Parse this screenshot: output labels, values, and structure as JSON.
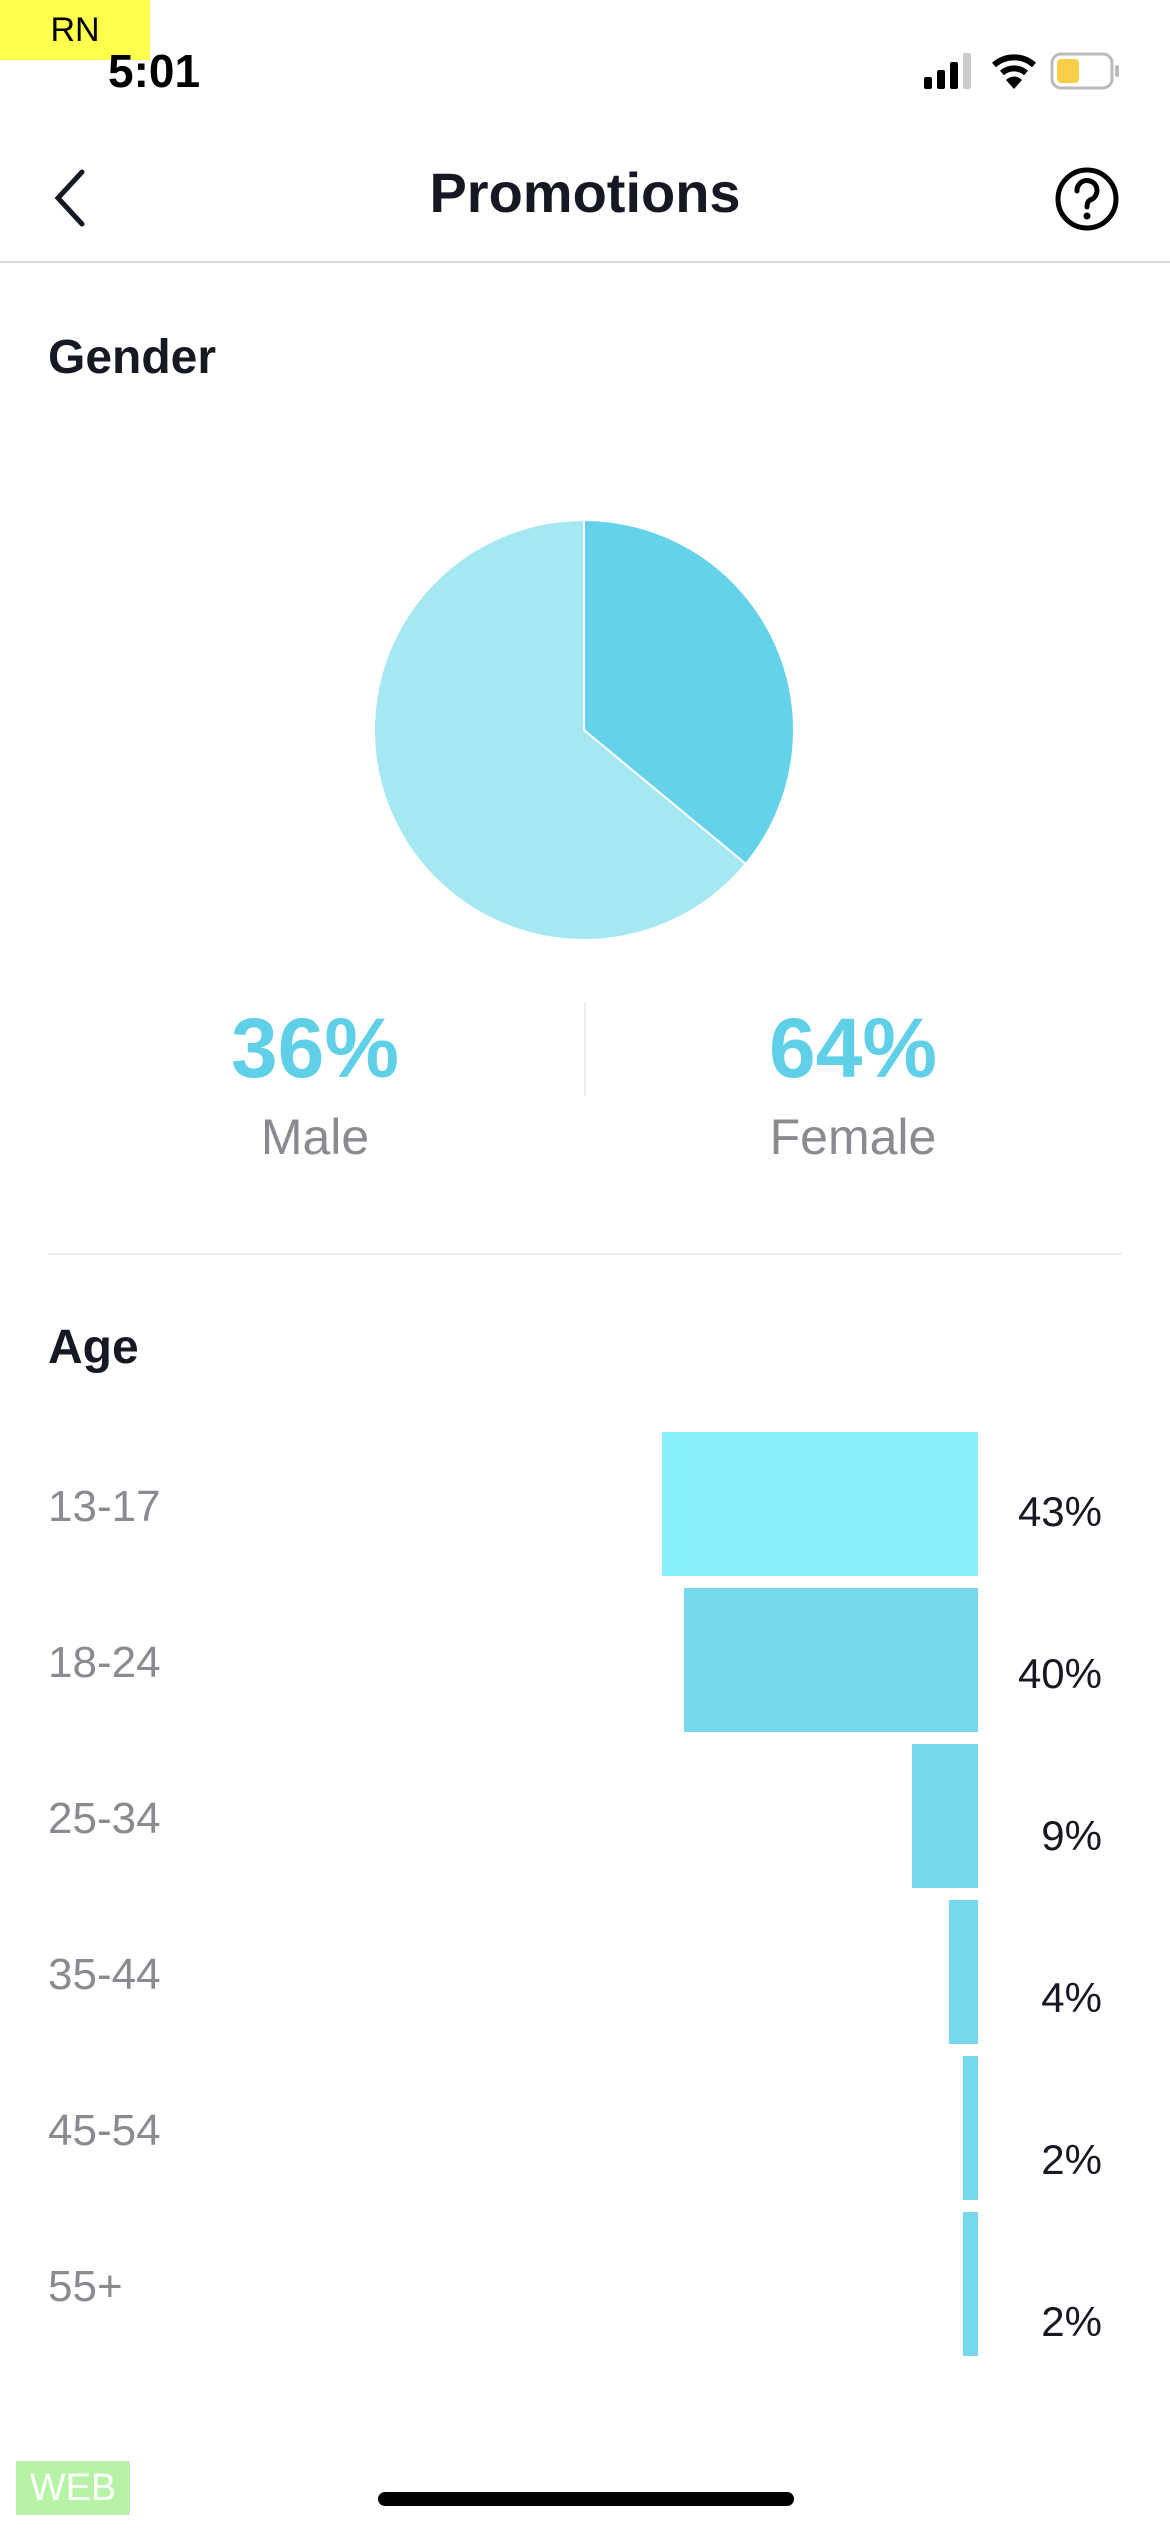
{
  "badges": {
    "top": "RN",
    "bottom": "WEB"
  },
  "status_bar": {
    "time": "5:01",
    "battery_color": "#f7ce46"
  },
  "header": {
    "title": "Promotions",
    "back_icon": "chevron-left-icon",
    "help_icon": "question-circle-icon"
  },
  "gender": {
    "heading": "Gender",
    "male": {
      "percent": "36%",
      "label": "Male",
      "value": 36,
      "color": "#64d2e8"
    },
    "female": {
      "percent": "64%",
      "label": "Female",
      "value": 64,
      "color": "#a6e8f2"
    }
  },
  "age": {
    "heading": "Age",
    "rows": [
      {
        "label": "13-17",
        "percent": "43%",
        "value": 43,
        "color": "#87f0fb"
      },
      {
        "label": "18-24",
        "percent": "40%",
        "value": 40,
        "color": "#78d9ec"
      },
      {
        "label": "25-34",
        "percent": "9%",
        "value": 9,
        "color": "#78d9ec"
      },
      {
        "label": "35-44",
        "percent": "4%",
        "value": 4,
        "color": "#78d9ec"
      },
      {
        "label": "45-54",
        "percent": "2%",
        "value": 2,
        "color": "#78d9ec"
      },
      {
        "label": "55+",
        "percent": "2%",
        "value": 2,
        "color": "#78d9ec"
      }
    ]
  }
}
